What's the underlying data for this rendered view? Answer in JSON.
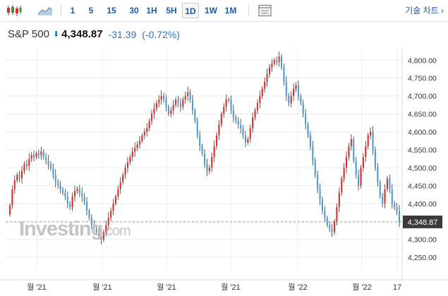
{
  "toolbar": {
    "intervals": [
      "1",
      "5",
      "15",
      "30",
      "1H",
      "5H",
      "1D",
      "1W",
      "1M"
    ],
    "active_interval": "1D",
    "technical_chart_label": "기술 차트 ›"
  },
  "quote": {
    "name": "S&P 500",
    "price": "4,348.87",
    "change": "-31.39",
    "change_pct": "(-0.72%)"
  },
  "watermark": "Investing.com",
  "colors": {
    "up": "#e02b2b",
    "down": "#4c9bd6",
    "grid": "#ececec",
    "last_price_bg": "#3a3a3a"
  },
  "chart_data": {
    "type": "candlestick",
    "ylim": [
      4215,
      4830
    ],
    "yticks": [
      4250,
      4300,
      4350,
      4400,
      4450,
      4500,
      4550,
      4600,
      4650,
      4700,
      4750,
      4800
    ],
    "ytick_labels": [
      "4,250.00",
      "4,300.00",
      "4,350.00",
      "4,400.00",
      "4,450.00",
      "4,500.00",
      "4,550.00",
      "4,600.00",
      "4,650.00",
      "4,700.00",
      "4,750.00",
      "4,800.00"
    ],
    "xtick_labels": [
      "월 '21",
      "월 '21",
      "월 '21",
      "월 '21",
      "월 '22",
      "월 '22",
      "17"
    ],
    "last_price": 4348.87,
    "last_price_label": "4,348.87",
    "closes": [
      4395,
      4440,
      4465,
      4480,
      4470,
      4490,
      4510,
      4505,
      4525,
      4535,
      4530,
      4540,
      4535,
      4545,
      4530,
      4520,
      4510,
      4500,
      4480,
      4460,
      4450,
      4440,
      4430,
      4420,
      4400,
      4390,
      4420,
      4435,
      4440,
      4430,
      4420,
      4405,
      4380,
      4360,
      4340,
      4330,
      4320,
      4310,
      4300,
      4320,
      4340,
      4360,
      4380,
      4400,
      4420,
      4440,
      4460,
      4480,
      4500,
      4515,
      4530,
      4545,
      4555,
      4565,
      4575,
      4590,
      4600,
      4610,
      4630,
      4650,
      4665,
      4680,
      4690,
      4700,
      4690,
      4670,
      4650,
      4660,
      4675,
      4690,
      4680,
      4670,
      4690,
      4700,
      4710,
      4690,
      4660,
      4630,
      4590,
      4560,
      4540,
      4510,
      4490,
      4500,
      4530,
      4560,
      4590,
      4620,
      4650,
      4670,
      4690,
      4690,
      4660,
      4640,
      4630,
      4620,
      4610,
      4590,
      4570,
      4580,
      4610,
      4640,
      4660,
      4680,
      4700,
      4720,
      4740,
      4760,
      4780,
      4790,
      4800,
      4795,
      4810,
      4780,
      4740,
      4700,
      4680,
      4700,
      4720,
      4730,
      4700,
      4680,
      4650,
      4620,
      4590,
      4560,
      4520,
      4480,
      4440,
      4410,
      4380,
      4360,
      4340,
      4330,
      4320,
      4350,
      4390,
      4430,
      4470,
      4500,
      4530,
      4560,
      4580,
      4520,
      4480,
      4450,
      4500,
      4530,
      4560,
      4590,
      4600,
      4550,
      4500,
      4460,
      4420,
      4400,
      4440,
      4470,
      4440,
      4400,
      4390,
      4380,
      4349
    ]
  }
}
